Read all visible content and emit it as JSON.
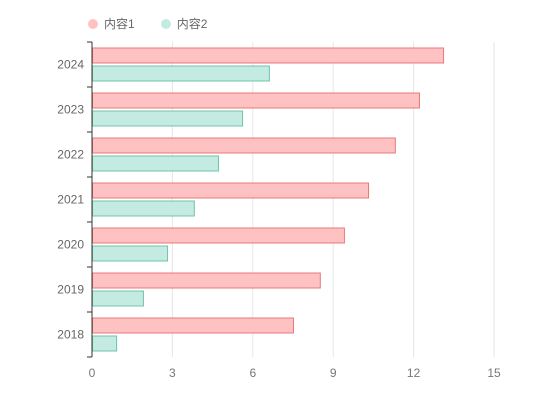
{
  "chart_data": {
    "type": "bar",
    "orientation": "horizontal",
    "categories": [
      "2018",
      "2019",
      "2020",
      "2021",
      "2022",
      "2023",
      "2024"
    ],
    "series": [
      {
        "name": "内容1",
        "values": [
          7.5,
          8.5,
          9.4,
          10.3,
          11.3,
          12.2,
          13.1
        ],
        "color": "#ffc2c2",
        "stroke": "#e8787a"
      },
      {
        "name": "内容2",
        "values": [
          0.9,
          1.9,
          2.8,
          3.8,
          4.7,
          5.6,
          6.6
        ],
        "color": "#c3ebe1",
        "stroke": "#6fc4a8"
      }
    ],
    "xticks": [
      "0",
      "3",
      "6",
      "9",
      "12",
      "15"
    ],
    "xlim": [
      0,
      15
    ],
    "grid": true,
    "legend": "top-left"
  }
}
